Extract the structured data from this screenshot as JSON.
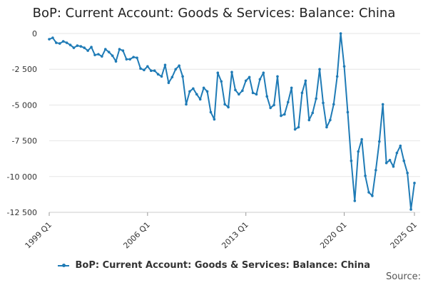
{
  "chart_data": {
    "type": "line",
    "title": "BoP: Current Account: Goods & Services: Balance: China",
    "xlabel": "",
    "ylabel": "",
    "ylim": [
      -12500,
      0
    ],
    "y_ticks": [
      0,
      -2500,
      -5000,
      -7500,
      -10000,
      -12500
    ],
    "y_tick_labels": [
      "0",
      "-2 500",
      "-5 000",
      "-7 500",
      "-10 000",
      "-12 500"
    ],
    "x_tick_labels": [
      "1999 Q1",
      "2006 Q1",
      "2013 Q1",
      "2020 Q1",
      "2025 Q1"
    ],
    "x_start_year": 1999,
    "x_end_label": "2025 Q1",
    "grid": true,
    "legend_position": "bottom",
    "color": "#1f7bb6",
    "series": [
      {
        "name": "BoP: Current Account: Goods & Services: Balance: China",
        "values": [
          -400,
          -300,
          -650,
          -700,
          -550,
          -650,
          -800,
          -1000,
          -850,
          -900,
          -1000,
          -1200,
          -950,
          -1500,
          -1450,
          -1600,
          -1100,
          -1300,
          -1550,
          -1950,
          -1100,
          -1200,
          -1800,
          -1800,
          -1650,
          -1700,
          -2450,
          -2550,
          -2300,
          -2600,
          -2600,
          -2850,
          -3000,
          -2200,
          -3450,
          -3050,
          -2500,
          -2250,
          -3000,
          -4950,
          -4050,
          -3850,
          -4250,
          -4600,
          -3800,
          -4050,
          -5500,
          -6000,
          -2750,
          -3350,
          -4950,
          -5150,
          -2700,
          -3950,
          -4250,
          -4000,
          -3300,
          -3050,
          -4150,
          -4250,
          -3200,
          -2750,
          -4400,
          -5200,
          -5000,
          -3000,
          -5750,
          -5650,
          -4800,
          -3800,
          -6700,
          -6550,
          -4150,
          -3300,
          -6050,
          -5550,
          -4550,
          -2500,
          -4850,
          -6550,
          -6050,
          -4950,
          -3000,
          0,
          -2300,
          -5500,
          -8900,
          -11700,
          -8250,
          -7400,
          -9950,
          -11100,
          -11350,
          -9550,
          -7550,
          -4950,
          -9050,
          -8850,
          -9300,
          -8350,
          -7850,
          -8900,
          -9750,
          -12300,
          -10450
        ]
      }
    ],
    "source_label": "Source:"
  }
}
